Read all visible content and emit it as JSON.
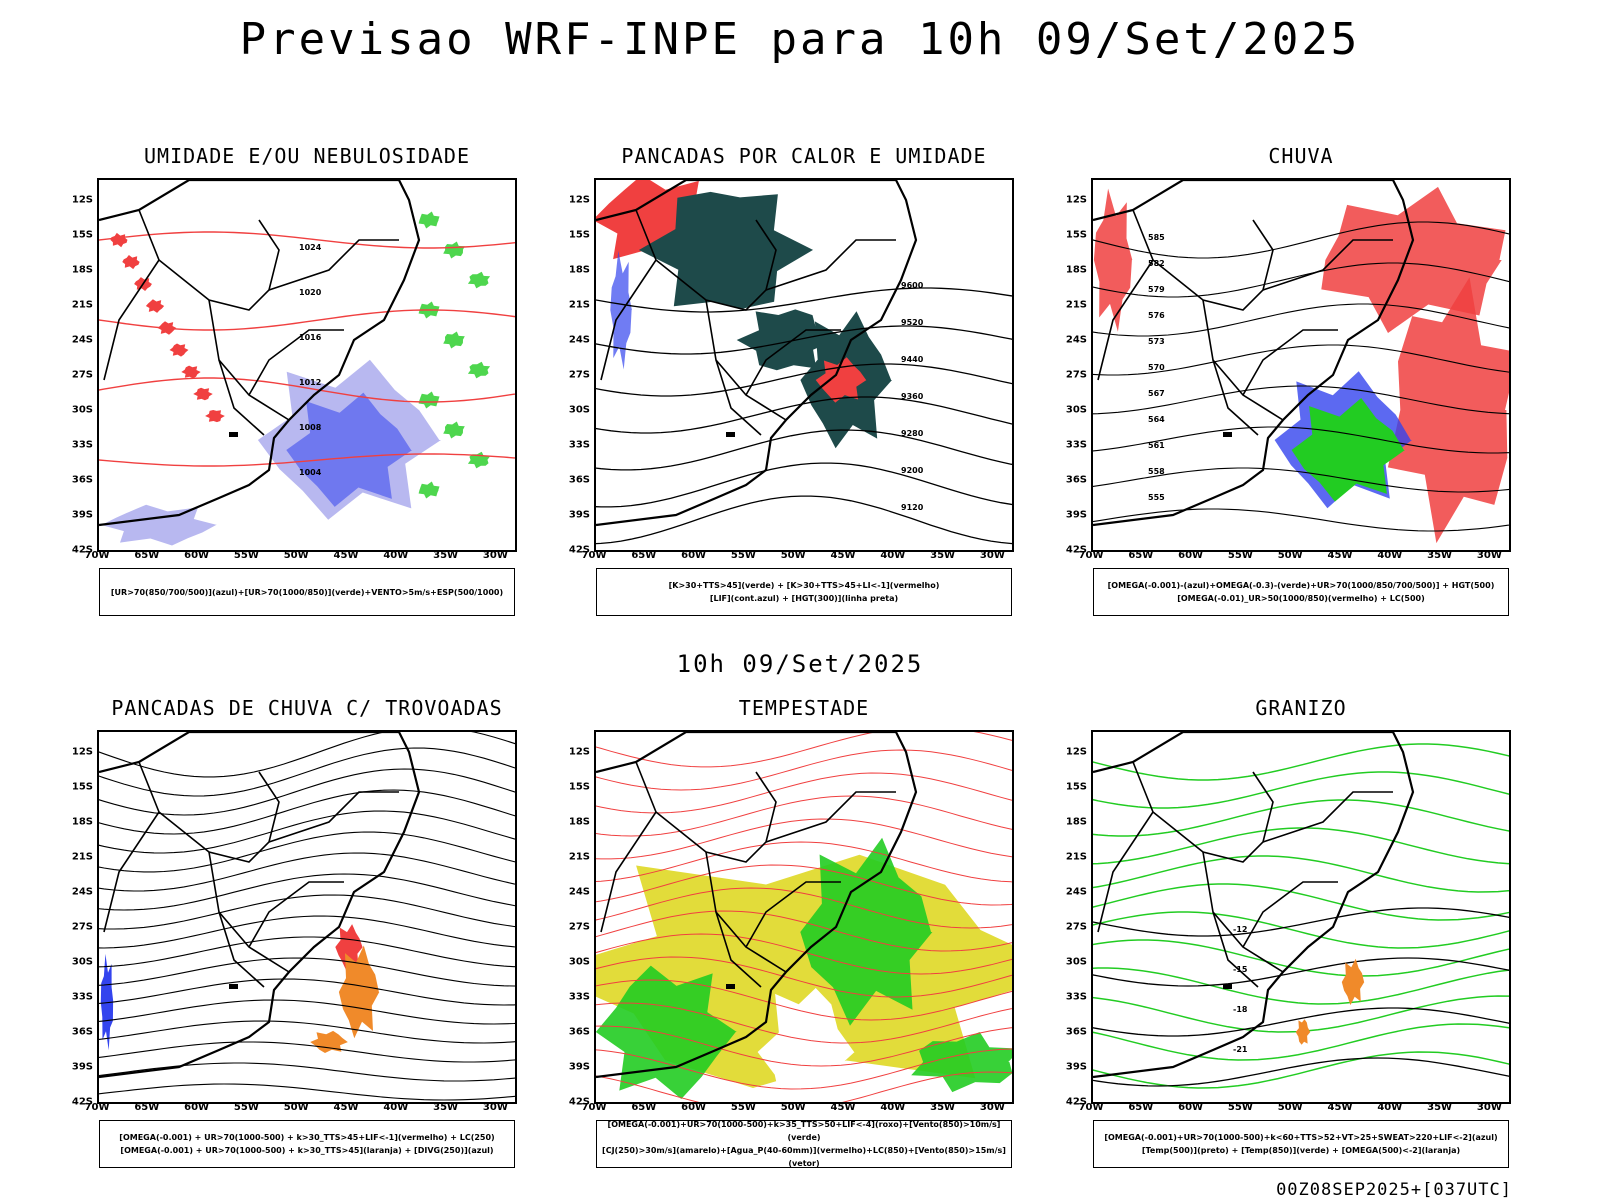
{
  "title": "Previsao WRF-INPE  para 10h 09/Set/2025",
  "subtitle": "10h 09/Set/2025",
  "footer": "00Z08SEP2025+[037UTC]",
  "lat_ticks": [
    "12S",
    "15S",
    "18S",
    "21S",
    "24S",
    "27S",
    "30S",
    "33S",
    "36S",
    "39S",
    "42S"
  ],
  "lon_ticks": [
    "70W",
    "65W",
    "60W",
    "55W",
    "50W",
    "45W",
    "40W",
    "35W",
    "30W"
  ],
  "colors": {
    "red": "#f04040",
    "blue": "#3344ee",
    "green": "#22cc22",
    "teal": "#1e4a4a",
    "orange": "#f08a2a",
    "yellow": "#e2dc3a",
    "lavender": "#b0b0ee"
  },
  "panels": [
    {
      "id": "umidade",
      "title": "UMIDADE E/OU NEBULOSIDADE",
      "legend": [
        "[UR>70(850/700/500)](azul)+[UR>70(1000/850)](verde)+VENTO>5m/s+ESP(500/1000)"
      ]
    },
    {
      "id": "pancadas-calor",
      "title": "PANCADAS POR CALOR E UMIDADE",
      "legend": [
        "[K>30+TTS>45](verde) + [K>30+TTS>45+LI<-1](vermelho)",
        "[LIF](cont.azul) + [HGT(300)](linha preta)"
      ]
    },
    {
      "id": "chuva",
      "title": "CHUVA",
      "legend": [
        "[OMEGA(-0.001)-(azul)+OMEGA(-0.3)-(verde)+UR>70(1000/850/700/500)] + HGT(500)",
        "[OMEGA(-0.01)_UR>50(1000/850)(vermelho) + LC(500)"
      ]
    },
    {
      "id": "trovoadas",
      "title": "PANCADAS DE CHUVA C/ TROVOADAS",
      "legend": [
        "[OMEGA(-0.001) + UR>70(1000-500) + k>30_TTS>45+LIF<-1](vermelho) + LC(250)",
        "[OMEGA(-0.001) + UR>70(1000-500) + k>30_TTS>45](laranja) + [DIVG(250)](azul)"
      ]
    },
    {
      "id": "tempestade",
      "title": "TEMPESTADE",
      "legend": [
        "[OMEGA(-0.001)+UR>70(1000-500)+k>35_TTS>50+LIF<-4](roxo)+[Vento(850)>10m/s](verde)",
        "[CJ(250)>30m/s](amarelo)+[Agua_P(40-60mm)](vermelho)+LC(850)+[Vento(850)>15m/s](vetor)"
      ]
    },
    {
      "id": "granizo",
      "title": "GRANIZO",
      "legend": [
        "[OMEGA(-0.001)+UR>70(1000-500)+k<60+TTS>52+VT>25+SWEAT>220+LIF<-2](azul)",
        "[Temp(500)](preto) + [Temp(850)](verde) + [OMEGA(500)<-2](laranja)"
      ]
    }
  ],
  "contour_labels": {
    "pancadas-calor": [
      "9600",
      "9520",
      "9440",
      "9360",
      "9280",
      "9200",
      "9120"
    ],
    "umidade": [
      "1024",
      "1020",
      "1016",
      "1012",
      "1008",
      "1004"
    ],
    "chuva": [
      "585",
      "582",
      "579",
      "576",
      "573",
      "570",
      "567",
      "564",
      "561",
      "558",
      "555"
    ],
    "granizo": [
      "-12",
      "-15",
      "-18",
      "-21"
    ]
  }
}
